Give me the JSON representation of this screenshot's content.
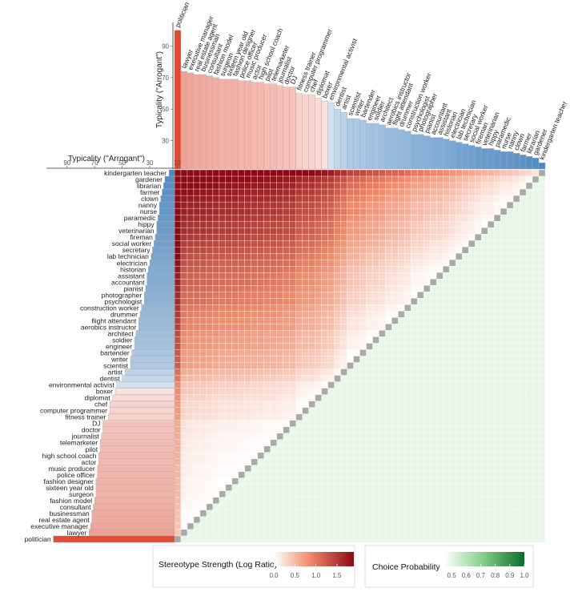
{
  "chart_data": {
    "type": "heatmap",
    "occupations_ordered": [
      "politician",
      "lawyer",
      "executive manager",
      "real estate agent",
      "businessman",
      "consultant",
      "fashion model",
      "surgeon",
      "sixteen year old",
      "fashion designer",
      "police officer",
      "music producer",
      "actor",
      "high school coach",
      "pilot",
      "telemarketer",
      "journalist",
      "doctor",
      "DJ",
      "fitness trainer",
      "computer programmer",
      "chef",
      "diplomat",
      "boxer",
      "environmental activist",
      "dentist",
      "artist",
      "scientist",
      "writer",
      "bartender",
      "engineer",
      "soldier",
      "architect",
      "aerobics instructor",
      "flight attendant",
      "drummer",
      "construction worker",
      "psychologist",
      "photographer",
      "pianist",
      "accountant",
      "assistant",
      "historian",
      "electrician",
      "lab technician",
      "secretary",
      "social worker",
      "fireman",
      "veterinarian",
      "hippy",
      "paramedic",
      "nurse",
      "nanny",
      "clown",
      "farmer",
      "librarian",
      "gardener",
      "kindergarten teacher"
    ],
    "typicality_arrogant": [
      100,
      74,
      73,
      72,
      72,
      71,
      70,
      69,
      69,
      69,
      68,
      68,
      67,
      67,
      66,
      66,
      65,
      64,
      64,
      60,
      59,
      59,
      57,
      55,
      54,
      50,
      48,
      44,
      44,
      43,
      41,
      41,
      40,
      38,
      38,
      37,
      36,
      34,
      34,
      33,
      32,
      32,
      31,
      30,
      29,
      28,
      27,
      26,
      25,
      25,
      24,
      23,
      23,
      22,
      21,
      20,
      19,
      16
    ],
    "top_histogram": {
      "ylabel": "Typicality (\"Arrogant\")",
      "yticks": [
        30,
        50,
        70,
        90
      ],
      "ylim": [
        12,
        105
      ]
    },
    "left_histogram": {
      "xlabel": "Typicality (\"Arrogant\")",
      "xticks": [
        90,
        70,
        50,
        30,
        10
      ]
    },
    "upper_triangle": "Stereotype Strength (Log Ratio)",
    "lower_triangle": "Choice Probability",
    "diagonal": "gray"
  },
  "legend": {
    "stereo_title": "Stereotype Strength (Log Ratio)",
    "stereo_ticks": [
      "0.0",
      "0.5",
      "1.0",
      "1.5"
    ],
    "stereo_tick_values": [
      0,
      0.5,
      1.0,
      1.5
    ],
    "stereo_range": [
      0,
      1.9
    ],
    "choice_title": "Choice Probability",
    "choice_ticks": [
      "0.5",
      "0.6",
      "0.7",
      "0.8",
      "0.9",
      "1.0"
    ],
    "choice_tick_values": [
      0.5,
      0.6,
      0.7,
      0.8,
      0.9,
      1.0
    ],
    "choice_range": [
      0.45,
      1.0
    ]
  },
  "colors": {
    "red_low": "#ffffff",
    "red_mid": "#f08a6a",
    "red_high": "#8b0a16",
    "green_low": "#ffffff",
    "green_mid": "#7fcd83",
    "green_high": "#0b6b2e",
    "bar_high": "#e34a33",
    "bar_low": "#4a86c0",
    "diag": "#a9a9a9"
  }
}
